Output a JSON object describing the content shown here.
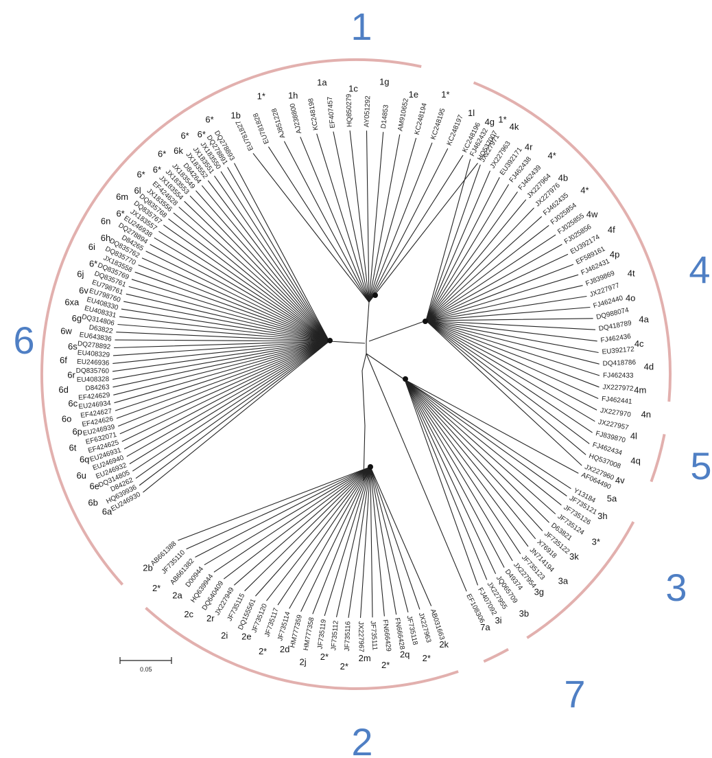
{
  "genotype_labels": [
    {
      "id": "1",
      "text": "1"
    },
    {
      "id": "2",
      "text": "2"
    },
    {
      "id": "3",
      "text": "3"
    },
    {
      "id": "4",
      "text": "4"
    },
    {
      "id": "5",
      "text": "5"
    },
    {
      "id": "6",
      "text": "6"
    },
    {
      "id": "7",
      "text": "7"
    }
  ],
  "scale_bar": {
    "label": "0.05",
    "value": 0.05
  },
  "colors": {
    "arc": "#e2b0ae",
    "genotype_label": "#4f7fc4",
    "branch": "#222222"
  },
  "clades": [
    {
      "id": "1",
      "accessions": [
        "EU781827",
        "EU781828",
        "AJ851228",
        "AJ238800",
        "KC248198",
        "EF407457",
        "HQ850279",
        "AY051292",
        "D14853",
        "AM910652",
        "KC248194",
        "KC248195",
        "KC248197",
        "KC248196",
        "HQ537007"
      ],
      "subtypes": [
        "1b",
        "1*",
        "1h",
        "1a",
        "1c",
        "1g",
        "1e",
        "1*",
        "1l",
        "1*"
      ]
    },
    {
      "id": "4",
      "accessions": [
        "FJ462432",
        "JX227971",
        "JX227963",
        "EU392171",
        "FJ462438",
        "FJ462439",
        "JX227964",
        "JX227976",
        "FJ462435",
        "FJ025854",
        "FJ025855",
        "FJ025856",
        "EU392174",
        "EF589161",
        "FJ462431",
        "FJ839869",
        "JX227977",
        "FJ462440",
        "DQ988074",
        "DQ418789",
        "FJ462436",
        "EU392172",
        "DQ418786",
        "FJ462433",
        "JX227972",
        "FJ462441",
        "JX227970",
        "JX227957",
        "FJ839870",
        "FJ462434",
        "HQ537008",
        "JX227960"
      ],
      "subtypes": [
        "4g",
        "4k",
        "4r",
        "4*",
        "4b",
        "4*",
        "4w",
        "4f",
        "4p",
        "4t",
        "4o",
        "4a",
        "4c",
        "4d",
        "4m",
        "4n",
        "4l",
        "4q",
        "4v"
      ]
    },
    {
      "id": "5",
      "accessions": [
        "AF064490",
        "Y13184"
      ],
      "subtypes": [
        "5a"
      ]
    },
    {
      "id": "3",
      "accessions": [
        "JF735121",
        "JF735126",
        "JF735124",
        "D63821",
        "JF735122",
        "X76918",
        "JN714194",
        "JF735123",
        "JX227954",
        "D49374",
        "JQ065709",
        "JX227955",
        "FJ407092"
      ],
      "subtypes": [
        "3h",
        "3*",
        "3k",
        "3a",
        "3g",
        "3b",
        "3i"
      ]
    },
    {
      "id": "7",
      "accessions": [
        "EF108306"
      ],
      "subtypes": [
        "7a"
      ]
    },
    {
      "id": "2",
      "accessions": [
        "AB031663",
        "JX227963",
        "JF735118",
        "FN666428",
        "FN666429",
        "JF735111",
        "JX227967",
        "JF735116",
        "JF735112",
        "JF735119",
        "HM777358",
        "HM777359",
        "JF735114",
        "JF735117",
        "JF735120",
        "DQ155561",
        "JF735115",
        "JX227949",
        "DQ640409",
        "HQ639944",
        "D00944",
        "AB661382",
        "JF735110",
        "AB661388"
      ],
      "subtypes": [
        "2k",
        "2*",
        "2q",
        "2*",
        "2m",
        "2*",
        "2*",
        "2j",
        "2d",
        "2*",
        "2e",
        "2i",
        "2r",
        "2c",
        "2a",
        "2*",
        "2b"
      ]
    },
    {
      "id": "6",
      "accessions": [
        "EU246930",
        "HQ639936",
        "D84262",
        "DQ314805",
        "EU246932",
        "EU246940",
        "EU246931",
        "EF424625",
        "EF632071",
        "EU246939",
        "EF424626",
        "EF424627",
        "EU246934",
        "EF424629",
        "D84263",
        "EU408328",
        "DQ835760",
        "EU246936",
        "EU408329",
        "DQ278892",
        "EU643836",
        "D63822",
        "DQ314806",
        "EU408331",
        "EU408330",
        "EU798760",
        "EU798761",
        "DQ835761",
        "DQ835769",
        "JX183558",
        "DQ835770",
        "DQ835762",
        "D84265",
        "DQ278894",
        "EU246938",
        "JX183557",
        "DQ835767",
        "DQ835768",
        "JX183556",
        "EF424628",
        "JX183554",
        "JX183553",
        "JX183549",
        "D84264",
        "JX183552",
        "JX183551",
        "JX183550",
        "DQ278891",
        "DQ278893"
      ],
      "subtypes": [
        "6a",
        "6b",
        "6e",
        "6u",
        "6q",
        "6t",
        "6p",
        "6o",
        "6c",
        "6d",
        "6r",
        "6f",
        "6s",
        "6w",
        "6g",
        "6xa",
        "6v",
        "6j",
        "6*",
        "6i",
        "6h",
        "6n",
        "6*",
        "6m",
        "6l",
        "6*",
        "6*",
        "6*",
        "6k",
        "6*",
        "6*",
        "6*"
      ]
    }
  ]
}
